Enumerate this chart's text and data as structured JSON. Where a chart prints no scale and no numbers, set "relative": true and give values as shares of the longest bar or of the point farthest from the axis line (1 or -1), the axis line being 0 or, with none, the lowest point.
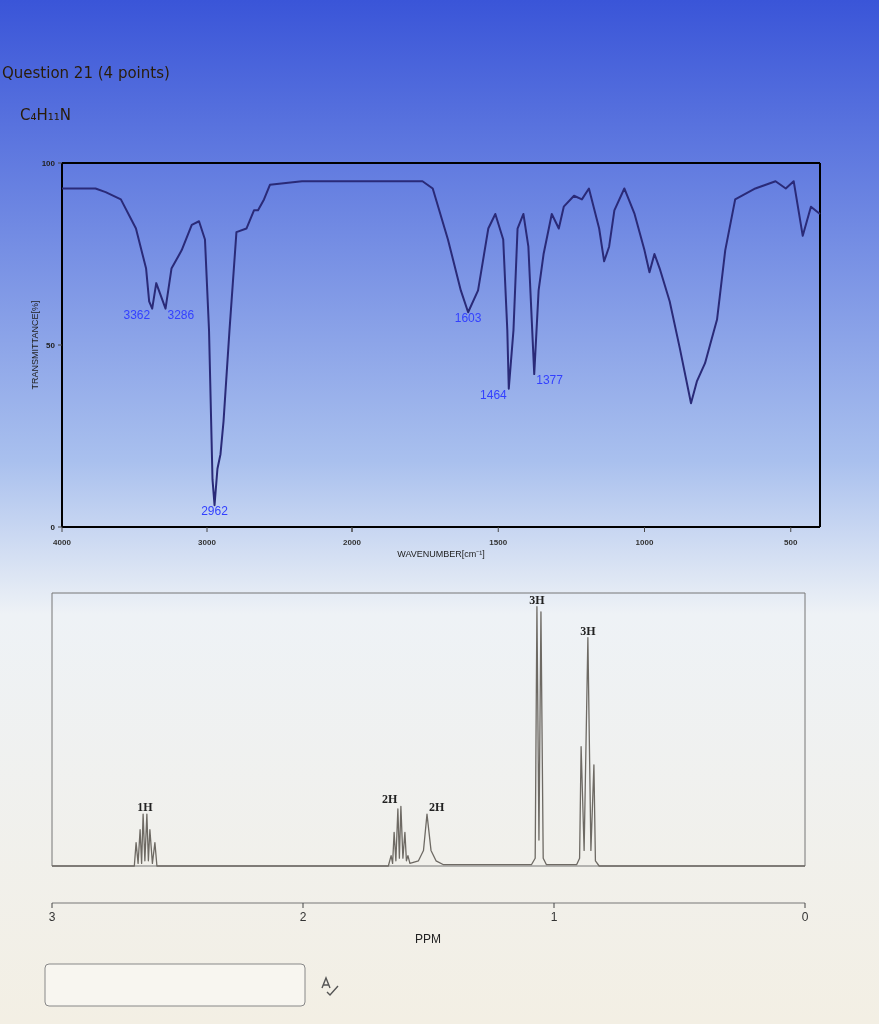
{
  "chart_data": [
    {
      "type": "line",
      "title": "Question 21 (4 points)",
      "subtitle": "C₄H₁₁N",
      "ylabel": "TRANSMITTANCE[%]",
      "xlim": [
        4000,
        2000
      ],
      "xticks": [
        4000,
        3000,
        {
          "value": 2000,
          "label": null
        }
      ],
      "ylim": [
        0,
        100
      ],
      "yticks": [
        0,
        50,
        100
      ],
      "x": [
        4000,
        3769,
        3699,
        3594,
        3490,
        3420,
        3399,
        3378,
        3350,
        3286,
        3245,
        3175,
        3105,
        3055,
        3014,
        2986,
        2962,
        2948,
        2928,
        2907,
        2886,
        2845,
        2797,
        2728,
        2676,
        2648,
        2607,
        2566,
        2345,
        2000
      ],
      "series": [
        {
          "color": "#2a2a78",
          "values": [
            93,
            93,
            92,
            90,
            82,
            71,
            62,
            60,
            67,
            60,
            71,
            76,
            83,
            84,
            79,
            54,
            13,
            6,
            16,
            20,
            29,
            54,
            81,
            82,
            87,
            87,
            90,
            94,
            95,
            95
          ]
        }
      ],
      "annotations": [
        {
          "text": "3362",
          "x": 3378,
          "y": 60
        },
        {
          "text": "3286",
          "x": 3286,
          "y": 60
        },
        {
          "text": "2962",
          "x": 2948,
          "y": 6
        }
      ]
    },
    {
      "type": "line",
      "xlabel": "WAVENUMBER[cm⁻¹]",
      "xlim": [
        2000,
        400
      ],
      "xticks": [
        2000,
        1500,
        1000,
        500
      ],
      "ylim": [
        0,
        100
      ],
      "tick_labels": "x",
      "x": [
        2000,
        1759,
        1724,
        1672,
        1628,
        1603,
        1569,
        1534,
        1510,
        1483,
        1469,
        1464,
        1448,
        1434,
        1414,
        1397,
        1377,
        1362,
        1345,
        1317,
        1293,
        1276,
        1241,
        1214,
        1190,
        1155,
        1138,
        1121,
        1103,
        1069,
        1034,
        1000,
        983,
        966,
        948,
        914,
        879,
        841,
        821,
        793,
        776,
        752,
        724,
        690,
        621,
        552,
        517,
        490,
        459,
        431,
        400
      ],
      "series": [
        {
          "color": "#2a2a78",
          "values": [
            95,
            95,
            93,
            79,
            65,
            59,
            65,
            82,
            86,
            79,
            54,
            38,
            54,
            82,
            86,
            77,
            42,
            65,
            75,
            86,
            82,
            88,
            91,
            90,
            93,
            82,
            73,
            77,
            87,
            93,
            86,
            76,
            70,
            75,
            71,
            62,
            49,
            34,
            40,
            45,
            50,
            57,
            76,
            90,
            93,
            95,
            93,
            95,
            80,
            88,
            86
          ]
        }
      ],
      "annotations": [
        {
          "text": "1603",
          "x": 1603,
          "y": 59
        },
        {
          "text": "1464",
          "x": 1464,
          "y": 38
        },
        {
          "text": "1377",
          "x": 1377,
          "y": 42
        }
      ]
    },
    {
      "type": "line",
      "relative": true,
      "xlabel": "PPM",
      "xlim": [
        3,
        0
      ],
      "xticks": [
        3,
        2,
        1,
        0
      ],
      "x": [
        3,
        2.7,
        2.672,
        2.665,
        2.657,
        2.649,
        2.643,
        2.637,
        2.63,
        2.622,
        2.616,
        2.61,
        2.6,
        2.59,
        2.582,
        1.66,
        1.649,
        1.643,
        1.637,
        1.63,
        1.622,
        1.616,
        1.61,
        1.602,
        1.594,
        1.588,
        1.582,
        1.574,
        1.54,
        1.52,
        1.506,
        1.49,
        1.47,
        1.44,
        1.09,
        1.075,
        1.068,
        1.06,
        1.052,
        1.043,
        1.03,
        0.91,
        0.898,
        0.892,
        0.88,
        0.865,
        0.853,
        0.841,
        0.835,
        0.82,
        0
      ],
      "series": [
        {
          "color": "#6e6a64",
          "values": [
            0,
            0,
            0,
            0.09,
            0.01,
            0.14,
            0.01,
            0.2,
            0.02,
            0.2,
            0.02,
            0.14,
            0.01,
            0.09,
            0,
            0,
            0.04,
            0.01,
            0.13,
            0.02,
            0.22,
            0.03,
            0.23,
            0.03,
            0.13,
            0.02,
            0.04,
            0.01,
            0.02,
            0.06,
            0.2,
            0.06,
            0.02,
            0.005,
            0.005,
            0.03,
            1,
            0.1,
            0.98,
            0.03,
            0.005,
            0.005,
            0.03,
            0.46,
            0.06,
            0.88,
            0.06,
            0.39,
            0.02,
            0,
            0
          ]
        }
      ],
      "annotations": [
        {
          "text": "1H",
          "x": 2.63,
          "y": 0.2
        },
        {
          "text": "2H",
          "x": 1.616,
          "y": 0.23
        },
        {
          "text": "2H",
          "x": 1.506,
          "y": 0.2
        },
        {
          "text": "3H",
          "x": 1.068,
          "y": 1
        },
        {
          "text": "3H",
          "x": 0.865,
          "y": 0.88
        }
      ]
    }
  ]
}
